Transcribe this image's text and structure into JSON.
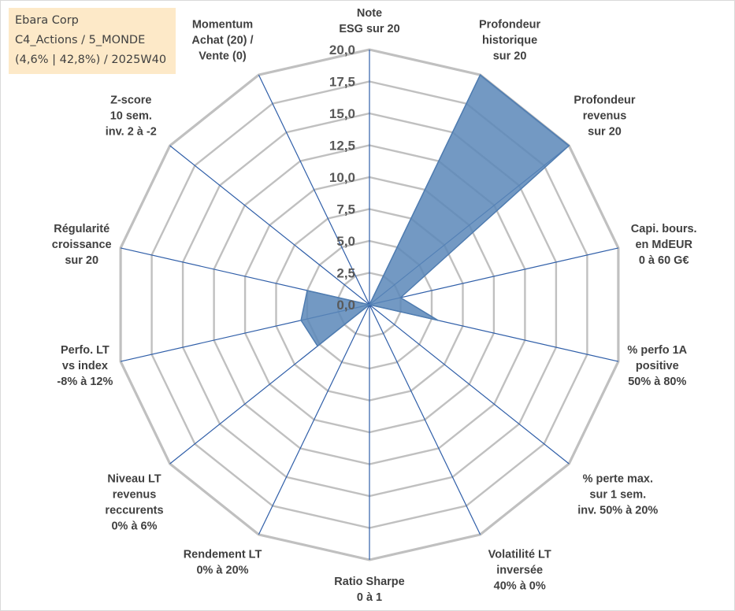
{
  "info": {
    "line1": "Ebara Corp",
    "line2": "C4_Actions / 5_MONDE",
    "line3": "(4,6% | 42,8%) / 2025W40"
  },
  "colors": {
    "fill": "#5b87b8",
    "stroke": "#4f7cb0",
    "grid": "#c0c0c0",
    "spoke": "#2f5ea8",
    "info_bg": "#fde9c8"
  },
  "chart_data": {
    "type": "radar",
    "title": "",
    "rmax": 20,
    "ticks": [
      0,
      2.5,
      5,
      7.5,
      10,
      12.5,
      15,
      17.5,
      20
    ],
    "tick_labels": [
      "0,0",
      "2,5",
      "5,0",
      "7,5",
      "10,0",
      "12,5",
      "15,0",
      "17,5",
      "20,0"
    ],
    "grid": true,
    "axes": [
      {
        "label": [
          "Note",
          "ESG sur 20"
        ],
        "value": 0
      },
      {
        "label": [
          "Profondeur",
          "historique",
          "sur 20"
        ],
        "value": 20
      },
      {
        "label": [
          "Profondeur",
          "revenus",
          "sur 20"
        ],
        "value": 20
      },
      {
        "label": [
          "Capi. bours.",
          "en MdEUR",
          "0 à 60 G€"
        ],
        "value": 2.5
      },
      {
        "label": [
          "% perfo 1A",
          "positive",
          "50% à 80%"
        ],
        "value": 5.5
      },
      {
        "label": [
          "% perte max.",
          "sur 1 sem.",
          "inv. 50% à 20%"
        ],
        "value": 0
      },
      {
        "label": [
          "Volatilité LT",
          "inversée",
          "40% à 0%"
        ],
        "value": 0
      },
      {
        "label": [
          "Ratio Sharpe",
          "0 à 1"
        ],
        "value": 0
      },
      {
        "label": [
          "Rendement LT",
          "0% à 20%"
        ],
        "value": 0
      },
      {
        "label": [
          "Niveau LT",
          "revenus",
          "reccurents",
          "0% à 6%"
        ],
        "value": 5.2
      },
      {
        "label": [
          "Perfo. LT",
          "vs index",
          "-8% à 12%"
        ],
        "value": 5.5
      },
      {
        "label": [
          "Régularité",
          "croissance",
          "sur 20"
        ],
        "value": 5.0
      },
      {
        "label": [
          "Z-score",
          "10 sem.",
          "inv. 2 à -2"
        ],
        "value": 0
      },
      {
        "label": [
          "Momentum",
          "Achat (20) /",
          "Vente (0)"
        ],
        "value": 0
      }
    ]
  }
}
